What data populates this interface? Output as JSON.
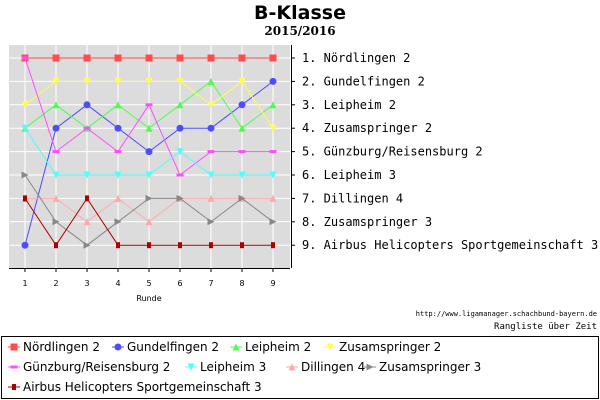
{
  "chart_data": {
    "type": "line",
    "title": "B-Klasse",
    "subtitle": "2015/2016",
    "xlabel": "Runde",
    "x": [
      1,
      2,
      3,
      4,
      5,
      6,
      7,
      8,
      9
    ],
    "ylim": [
      1,
      9
    ],
    "y_inverted": true,
    "grid": true,
    "legend_position": "bottom",
    "final_ranking": [
      "1. Nördlingen 2",
      "2. Gundelfingen 2",
      "3. Leipheim 2",
      "4. Zusamspringer 2",
      "5. Günzburg/Reisensburg 2",
      "6. Leipheim 3",
      "7. Dillingen 4",
      "8. Zusamspringer 3",
      "9. Airbus Helicopters Sportgemeinschaft 3"
    ],
    "series": [
      {
        "name": "Nördlingen 2",
        "color": "#ff4d4d",
        "marker": "square",
        "values": [
          1,
          1,
          1,
          1,
          1,
          1,
          1,
          1,
          1
        ]
      },
      {
        "name": "Gundelfingen 2",
        "color": "#4d4dff",
        "marker": "circle",
        "values": [
          9,
          4,
          3,
          4,
          5,
          4,
          4,
          3,
          2
        ]
      },
      {
        "name": "Leipheim 2",
        "color": "#4dff4d",
        "marker": "triangle-up",
        "values": [
          4,
          3,
          4,
          3,
          4,
          3,
          2,
          4,
          3
        ]
      },
      {
        "name": "Zusamspringer 2",
        "color": "#ffff4d",
        "marker": "triangle-down",
        "values": [
          3,
          2,
          2,
          2,
          2,
          2,
          3,
          2,
          4
        ]
      },
      {
        "name": "Günzburg/Reisensburg 2",
        "color": "#ff4dff",
        "marker": "bar",
        "values": [
          1,
          5,
          4,
          5,
          3,
          6,
          5,
          5,
          5
        ]
      },
      {
        "name": "Leipheim 3",
        "color": "#4dffff",
        "marker": "triangle-down",
        "values": [
          4,
          6,
          6,
          6,
          6,
          5,
          6,
          6,
          6
        ]
      },
      {
        "name": "Dillingen 4",
        "color": "#ffaaaa",
        "marker": "triangle-up",
        "values": [
          7,
          7,
          8,
          7,
          8,
          7,
          7,
          7,
          7
        ]
      },
      {
        "name": "Zusamspringer 3",
        "color": "#888888",
        "marker": "triangle-right",
        "values": [
          6,
          8,
          9,
          8,
          7,
          7,
          8,
          7,
          8
        ]
      },
      {
        "name": "Airbus Helicopters Sportgemeinschaft 3",
        "color": "#aa0000",
        "marker": "square-small",
        "values": [
          7,
          9,
          7,
          9,
          9,
          9,
          9,
          9,
          9
        ]
      }
    ]
  },
  "footer": {
    "source": "http://www.ligamanager.schachbund-bayern.de",
    "caption": "Rangliste über Zeit"
  }
}
